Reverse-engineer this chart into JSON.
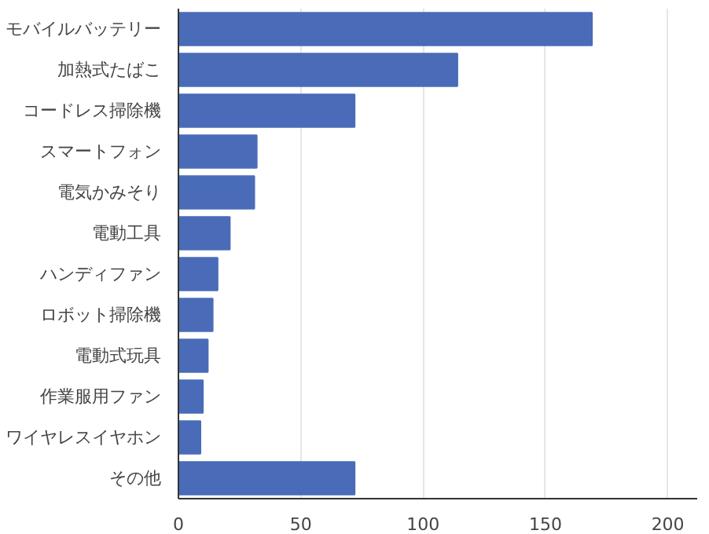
{
  "chart_data": {
    "type": "bar",
    "orientation": "horizontal",
    "categories": [
      "モバイルバッテリー",
      "加熱式たばこ",
      "コードレス掃除機",
      "スマートフォン",
      "電気かみそり",
      "電動工具",
      "ハンディファン",
      "ロボット掃除機",
      "電動式玩具",
      "作業服用ファン",
      "ワイヤレスイヤホン",
      "その他"
    ],
    "values": [
      169,
      114,
      72,
      32,
      31,
      21,
      16,
      14,
      12,
      10,
      9,
      72
    ],
    "color": "#4a6cb8",
    "xlim": [
      0,
      212
    ],
    "xticks": [
      0,
      50,
      100,
      150,
      200
    ],
    "grid": "x"
  }
}
